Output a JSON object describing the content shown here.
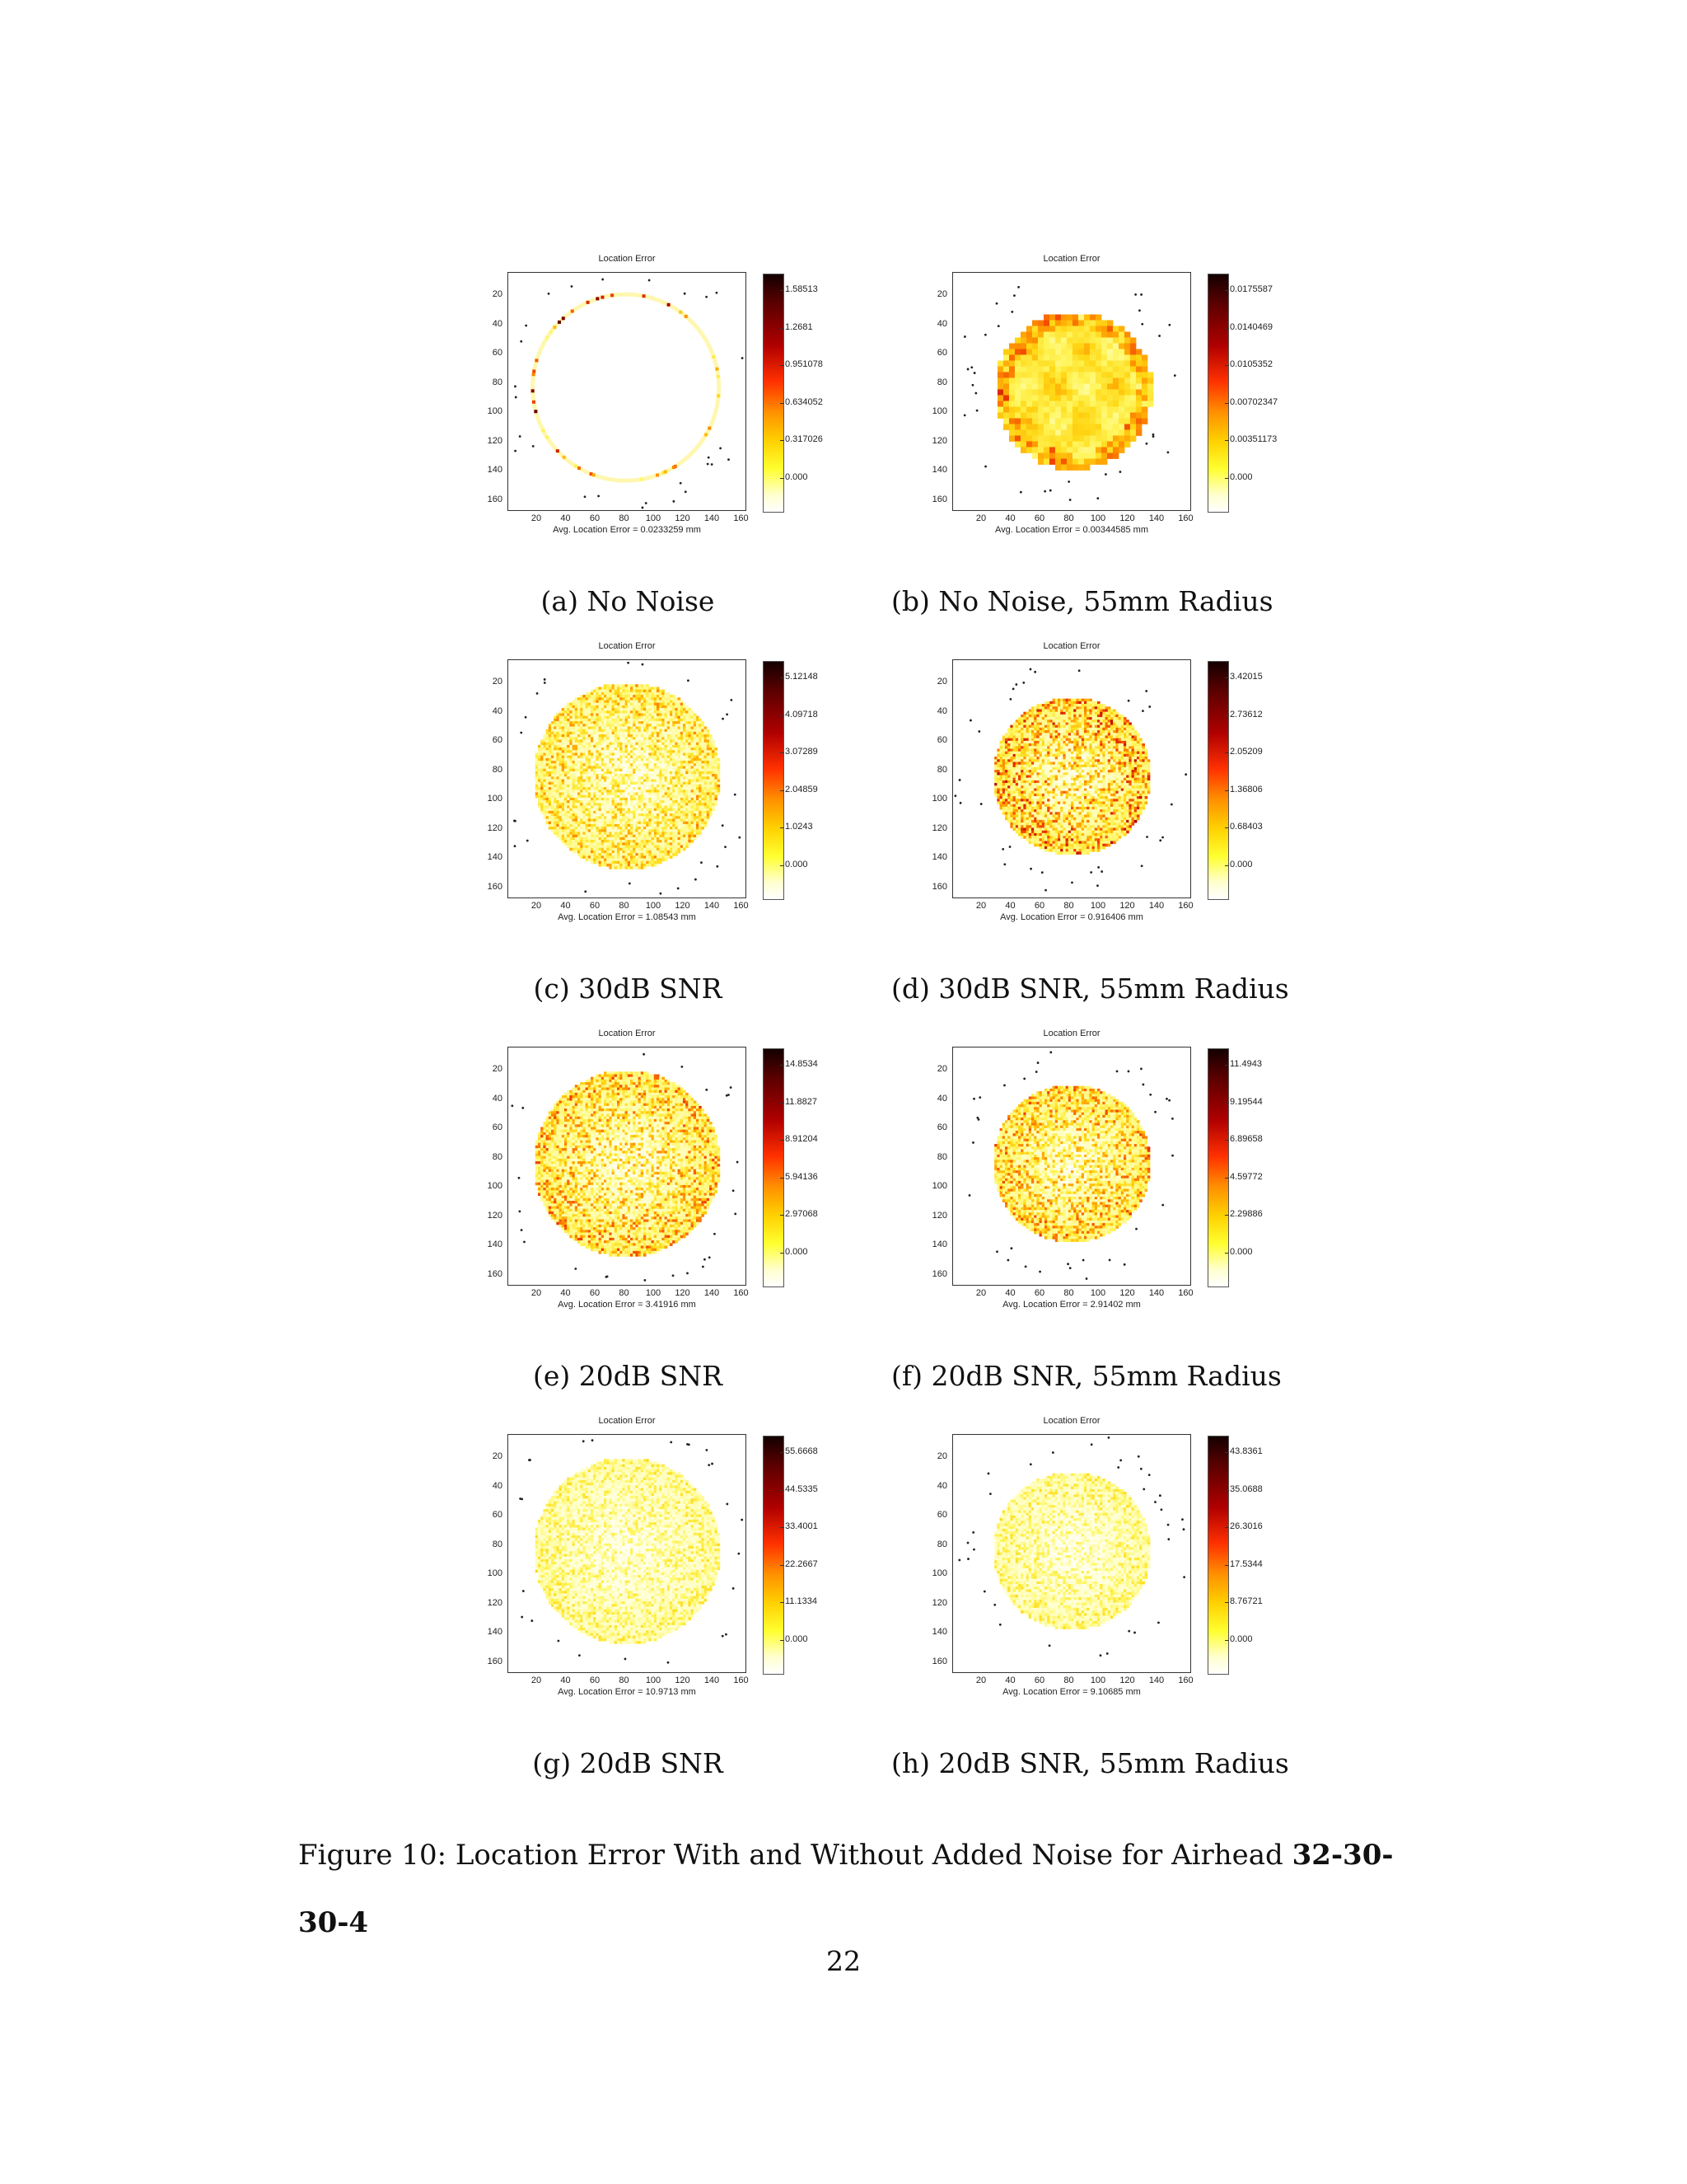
{
  "panels": [
    {
      "id": "a",
      "title": "Location Error",
      "footer": "Avg. Location Error = 0.0233259 mm",
      "yticks": [
        "20",
        "40",
        "60",
        "80",
        "100",
        "120",
        "140",
        "160"
      ],
      "xticks": [
        "20",
        "40",
        "60",
        "80",
        "100",
        "120",
        "140",
        "160"
      ],
      "colorbar": [
        "1.58513",
        "1.2681",
        "0.951078",
        "0.634052",
        "0.317026",
        "0.000"
      ],
      "caption": "(a) No Noise",
      "pattern": "ring",
      "radius_mm": 65,
      "intensity": 0.1
    },
    {
      "id": "b",
      "title": "Location Error",
      "footer": "Avg. Location Error = 0.00344585 mm",
      "yticks": [
        "20",
        "40",
        "60",
        "80",
        "100",
        "120",
        "140",
        "160"
      ],
      "xticks": [
        "20",
        "40",
        "60",
        "80",
        "100",
        "120",
        "140",
        "160"
      ],
      "colorbar": [
        "0.0175587",
        "0.0140469",
        "0.0105352",
        "0.00702347",
        "0.00351173",
        "0.000"
      ],
      "caption": "(b) No Noise, 55mm Radius",
      "pattern": "smooth",
      "radius_mm": 55,
      "intensity": 0.45
    },
    {
      "id": "c",
      "title": "Location Error",
      "footer": "Avg. Location Error = 1.08543 mm",
      "yticks": [
        "20",
        "40",
        "60",
        "80",
        "100",
        "120",
        "140",
        "160"
      ],
      "xticks": [
        "20",
        "40",
        "60",
        "80",
        "100",
        "120",
        "140",
        "160"
      ],
      "colorbar": [
        "5.12148",
        "4.09718",
        "3.07289",
        "2.04859",
        "1.0243",
        "0.000"
      ],
      "caption": "(c) 30dB SNR",
      "pattern": "noise",
      "radius_mm": 65,
      "intensity": 0.3
    },
    {
      "id": "d",
      "title": "Location Error",
      "footer": "Avg. Location Error = 0.916406 mm",
      "yticks": [
        "20",
        "40",
        "60",
        "80",
        "100",
        "120",
        "140",
        "160"
      ],
      "xticks": [
        "20",
        "40",
        "60",
        "80",
        "100",
        "120",
        "140",
        "160"
      ],
      "colorbar": [
        "3.42015",
        "2.73612",
        "2.05209",
        "1.36806",
        "0.68403",
        "0.000"
      ],
      "caption": "(d) 30dB SNR, 55mm Radius",
      "pattern": "noise",
      "radius_mm": 55,
      "intensity": 0.4
    },
    {
      "id": "e",
      "title": "Location Error",
      "footer": "Avg. Location Error = 3.41916 mm",
      "yticks": [
        "20",
        "40",
        "60",
        "80",
        "100",
        "120",
        "140",
        "160"
      ],
      "xticks": [
        "20",
        "40",
        "60",
        "80",
        "100",
        "120",
        "140",
        "160"
      ],
      "colorbar": [
        "14.8534",
        "11.8827",
        "8.91204",
        "5.94136",
        "2.97068",
        "0.000"
      ],
      "caption": "(e) 20dB SNR",
      "pattern": "noise",
      "radius_mm": 65,
      "intensity": 0.35
    },
    {
      "id": "f",
      "title": "Location Error",
      "footer": "Avg. Location Error = 2.91402 mm",
      "yticks": [
        "20",
        "40",
        "60",
        "80",
        "100",
        "120",
        "140",
        "160"
      ],
      "xticks": [
        "20",
        "40",
        "60",
        "80",
        "100",
        "120",
        "140",
        "160"
      ],
      "colorbar": [
        "11.4943",
        "9.19544",
        "6.89658",
        "4.59772",
        "2.29886",
        "0.000"
      ],
      "caption": "(f) 20dB SNR, 55mm Radius",
      "pattern": "noise",
      "radius_mm": 55,
      "intensity": 0.35
    },
    {
      "id": "g",
      "title": "Location Error",
      "footer": "Avg. Location Error = 10.9713 mm",
      "yticks": [
        "20",
        "40",
        "60",
        "80",
        "100",
        "120",
        "140",
        "160"
      ],
      "xticks": [
        "20",
        "40",
        "60",
        "80",
        "100",
        "120",
        "140",
        "160"
      ],
      "colorbar": [
        "55.6668",
        "44.5335",
        "33.4001",
        "22.2667",
        "11.1334",
        "0.000"
      ],
      "caption": "(g) 20dB SNR",
      "pattern": "noise",
      "radius_mm": 65,
      "intensity": 0.2
    },
    {
      "id": "h",
      "title": "Location Error",
      "footer": "Avg. Location Error = 9.10685 mm",
      "yticks": [
        "20",
        "40",
        "60",
        "80",
        "100",
        "120",
        "140",
        "160"
      ],
      "xticks": [
        "20",
        "40",
        "60",
        "80",
        "100",
        "120",
        "140",
        "160"
      ],
      "colorbar": [
        "43.8361",
        "35.0688",
        "26.3016",
        "17.5344",
        "8.76721",
        "0.000"
      ],
      "caption": "(h) 20dB SNR, 55mm Radius",
      "pattern": "noise",
      "radius_mm": 55,
      "intensity": 0.2
    }
  ],
  "figure_caption": {
    "prefix": "Figure 10:  Location Error With and Without Added Noise for Airhead ",
    "bold": "32-30-30-4"
  },
  "page_number": "22",
  "colors": {
    "colormap": [
      "#140000",
      "#b00000",
      "#ff3000",
      "#ffd000",
      "#ffff30",
      "#ffffff"
    ]
  }
}
